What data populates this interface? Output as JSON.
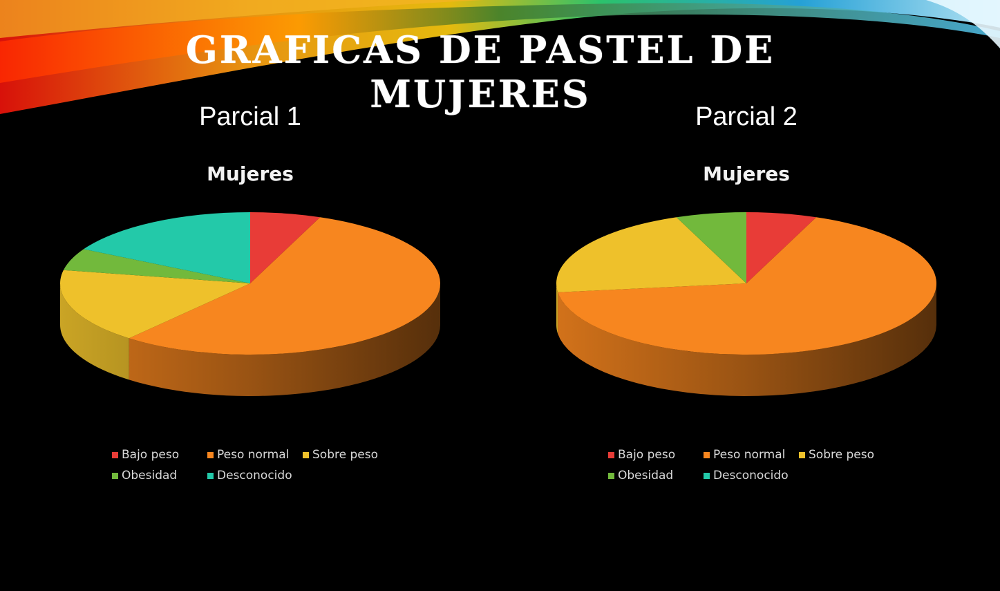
{
  "slide": {
    "title": "Graficas de pastel de mujeres"
  },
  "chart_data": [
    {
      "type": "pie",
      "heading": "Parcial 1",
      "title": "Mujeres",
      "categories": [
        "Bajo peso",
        "Peso normal",
        "Sobre peso",
        "Obesidad",
        "Desconocido"
      ],
      "values": [
        6,
        55,
        17,
        5,
        17
      ],
      "colors": [
        "#e83c37",
        "#f7861f",
        "#eec12b",
        "#72b93c",
        "#23c9a9"
      ],
      "legend_position": "bottom",
      "style": "3d"
    },
    {
      "type": "pie",
      "heading": "Parcial 2",
      "title": "Mujeres",
      "categories": [
        "Bajo peso",
        "Peso normal",
        "Sobre peso",
        "Obesidad",
        "Desconocido"
      ],
      "values": [
        6,
        67,
        21,
        6,
        0
      ],
      "colors": [
        "#e83c37",
        "#f7861f",
        "#eec12b",
        "#72b93c",
        "#23c9a9"
      ],
      "legend_position": "bottom",
      "style": "3d"
    }
  ]
}
